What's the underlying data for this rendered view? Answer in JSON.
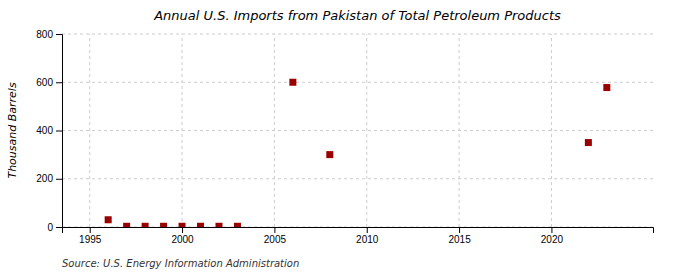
{
  "chart_data": {
    "type": "scatter",
    "title": "Annual U.S. Imports from Pakistan of Total Petroleum Products",
    "ylabel": "Thousand Barrels",
    "source": "Source: U.S. Energy Information Administration",
    "x": [
      1996,
      1997,
      1998,
      1999,
      2000,
      2001,
      2002,
      2003,
      2006,
      2008,
      2022,
      2023
    ],
    "values": [
      30,
      3,
      3,
      3,
      3,
      3,
      3,
      3,
      600,
      300,
      350,
      578
    ],
    "color": "#990000",
    "marker": "square",
    "xlim": [
      1993.5,
      2025.5
    ],
    "xticks": [
      1995,
      2000,
      2005,
      2010,
      2015,
      2020
    ],
    "ylim": [
      0,
      800
    ],
    "yticks": [
      0,
      200,
      400,
      600,
      800
    ],
    "grid": true
  }
}
